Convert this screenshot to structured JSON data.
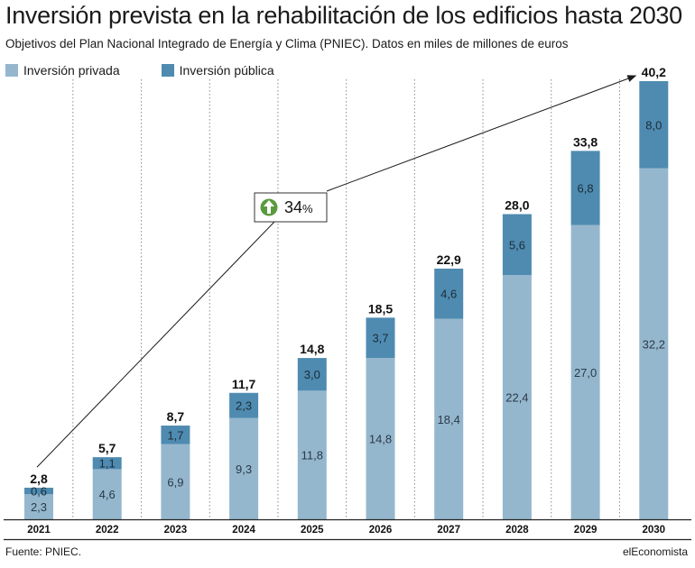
{
  "header": {
    "title": "Inversión prevista en la rehabilitación de los edificios hasta 2030",
    "subtitle": "Objetivos del Plan Nacional Integrado de Energía y Clima (PNIEC). Datos en miles de millones de euros"
  },
  "footer": {
    "source": "Fuente: PNIEC.",
    "brand": "elEconomista"
  },
  "colors": {
    "private": "#95b7cd",
    "public": "#4f8bb0",
    "growth_icon": "#5a9a3e"
  },
  "chart_data": {
    "type": "bar",
    "stacked": true,
    "title": "Inversión prevista en la rehabilitación de los edificios hasta 2030",
    "subtitle": "Objetivos del Plan Nacional Integrado de Energía y Clima (PNIEC). Datos en miles de millones de euros",
    "categories": [
      "2021",
      "2022",
      "2023",
      "2024",
      "2025",
      "2026",
      "2027",
      "2028",
      "2029",
      "2030"
    ],
    "series": [
      {
        "name": "Inversión privada",
        "values": [
          2.3,
          4.6,
          6.9,
          9.3,
          11.8,
          14.8,
          18.4,
          22.4,
          27.0,
          32.2
        ],
        "labels": [
          "2,3",
          "4,6",
          "6,9",
          "9,3",
          "11,8",
          "14,8",
          "18,4",
          "22,4",
          "27,0",
          "32,2"
        ]
      },
      {
        "name": "Inversión pública",
        "values": [
          0.6,
          1.1,
          1.7,
          2.3,
          3.0,
          3.7,
          4.6,
          5.6,
          6.8,
          8.0
        ],
        "labels": [
          "0,6",
          "1,1",
          "1,7",
          "2,3",
          "3,0",
          "3,7",
          "4,6",
          "5,6",
          "6,8",
          "8,0"
        ]
      }
    ],
    "totals": [
      2.8,
      5.7,
      8.7,
      11.7,
      14.8,
      18.5,
      22.9,
      28.0,
      33.8,
      40.2
    ],
    "total_labels": [
      "2,8",
      "5,7",
      "8,7",
      "11,7",
      "14,8",
      "18,5",
      "22,9",
      "28,0",
      "33,8",
      "40,2"
    ],
    "ylim": [
      0,
      40.2
    ],
    "grid": "vertical-dotted",
    "legend_position": "top-left",
    "annotation": {
      "text": "34",
      "unit": "%",
      "icon": "arrow-up-circle-icon",
      "from": "2021",
      "to": "2030"
    }
  }
}
